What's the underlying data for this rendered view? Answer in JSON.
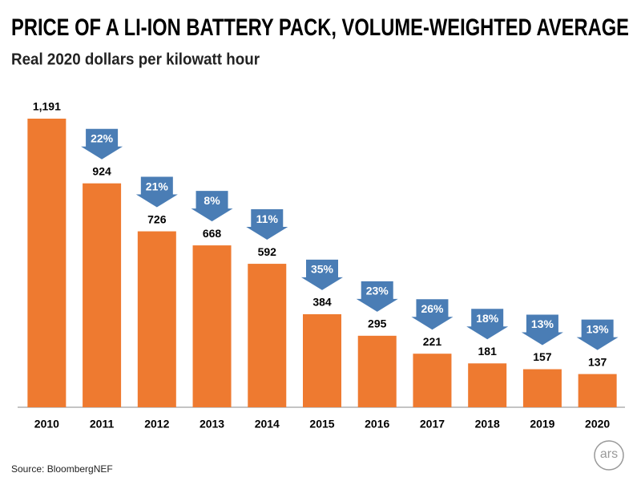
{
  "chart_data": {
    "type": "bar",
    "title": "PRICE OF A LI-ION BATTERY PACK, VOLUME-WEIGHTED AVERAGE",
    "subtitle": "Real 2020 dollars per kilowatt hour",
    "categories": [
      "2010",
      "2011",
      "2012",
      "2013",
      "2014",
      "2015",
      "2016",
      "2017",
      "2018",
      "2019",
      "2020"
    ],
    "values": [
      1191,
      924,
      726,
      668,
      592,
      384,
      295,
      221,
      181,
      157,
      137
    ],
    "value_labels": [
      "1,191",
      "924",
      "726",
      "668",
      "592",
      "384",
      "295",
      "221",
      "181",
      "157",
      "137"
    ],
    "declines": [
      null,
      22,
      21,
      8,
      11,
      35,
      23,
      26,
      18,
      13,
      13
    ],
    "decline_labels": [
      null,
      "22%",
      "21%",
      "8%",
      "11%",
      "35%",
      "23%",
      "26%",
      "18%",
      "13%",
      "13%"
    ],
    "color": "#ee7a30",
    "arrow_color": "#4a7db5",
    "source": "Source:  BloombergNEF"
  },
  "logo": "ars"
}
